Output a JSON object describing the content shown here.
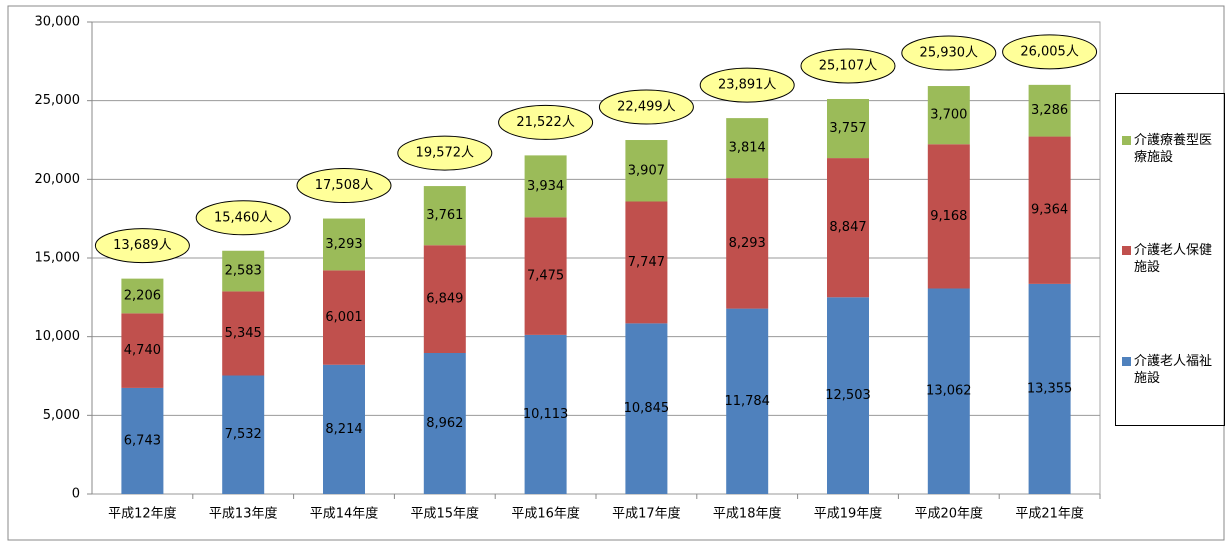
{
  "chart_data": {
    "type": "stacked_bar",
    "categories": [
      "平成12年度",
      "平成13年度",
      "平成14年度",
      "平成15年度",
      "平成16年度",
      "平成17年度",
      "平成18年度",
      "平成19年度",
      "平成20年度",
      "平成21年度"
    ],
    "series": [
      {
        "name": "介護老人福祉施設",
        "color": "#4f81bd",
        "values": [
          6743,
          7532,
          8214,
          8962,
          10113,
          10845,
          11784,
          12503,
          13062,
          13355
        ],
        "value_labels": [
          "6,743",
          "7,532",
          "8,214",
          "8,962",
          "10,113",
          "10,845",
          "11,784",
          "12,503",
          "13,062",
          "13,355"
        ]
      },
      {
        "name": "介護老人保健施設",
        "color": "#c0504d",
        "values": [
          4740,
          5345,
          6001,
          6849,
          7475,
          7747,
          8293,
          8847,
          9168,
          9364
        ],
        "value_labels": [
          "4,740",
          "5,345",
          "6,001",
          "6,849",
          "7,475",
          "7,747",
          "8,293",
          "8,847",
          "9,168",
          "9,364"
        ]
      },
      {
        "name": "介護療養型医療施設",
        "color": "#9bbb59",
        "values": [
          2206,
          2583,
          3293,
          3761,
          3934,
          3907,
          3814,
          3757,
          3700,
          3286
        ],
        "value_labels": [
          "2,206",
          "2,583",
          "3,293",
          "3,761",
          "3,934",
          "3,907",
          "3,814",
          "3,757",
          "3,700",
          "3,286"
        ]
      }
    ],
    "totals": {
      "values": [
        13689,
        15460,
        17508,
        19572,
        21522,
        22499,
        23891,
        25107,
        25930,
        26005
      ],
      "value_labels": [
        "13,689人",
        "15,460人",
        "17,508人",
        "19,572人",
        "21,522人",
        "22,499人",
        "23,891人",
        "25,107人",
        "25,930人",
        "26,005人"
      ],
      "color": "#ffff99"
    },
    "ylim": [
      0,
      30000
    ],
    "yticks": [
      0,
      {
        "value": 5000,
        "label": "5,000"
      },
      {
        "value": 10000,
        "label": "10,000"
      },
      {
        "value": 15000,
        "label": "15,000"
      },
      {
        "value": 20000,
        "label": "20,000"
      },
      {
        "value": 25000,
        "label": "25,000"
      },
      {
        "value": 30000,
        "label": "30,000"
      }
    ],
    "grid": true,
    "legend": "right"
  }
}
